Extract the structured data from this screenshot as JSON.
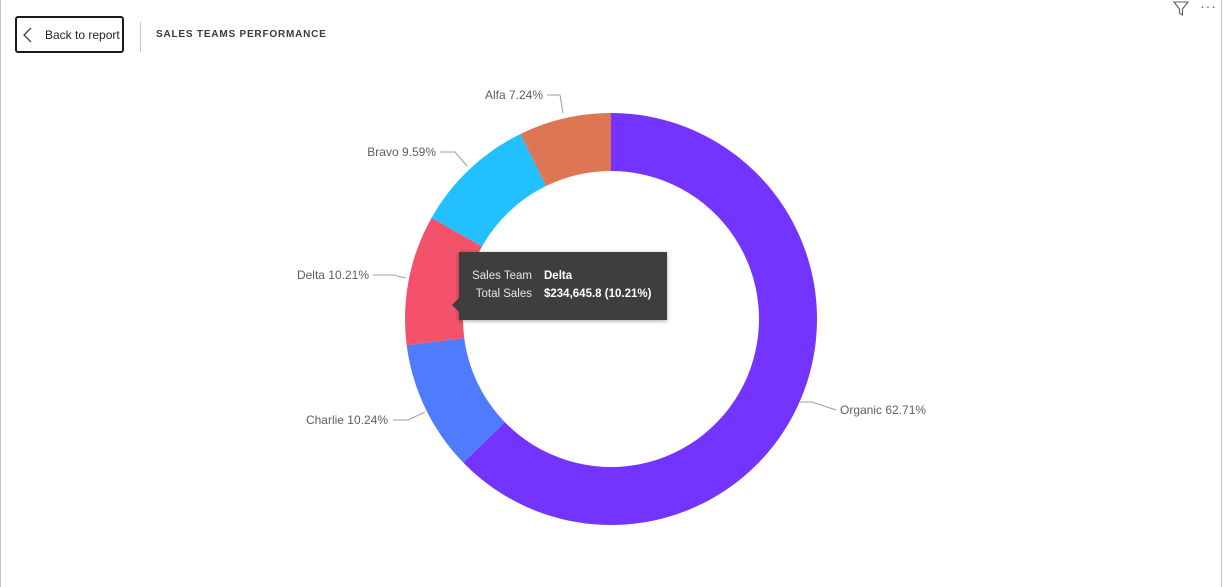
{
  "header": {
    "back_label": "Back to report",
    "title": "SALES TEAMS PERFORMANCE"
  },
  "icons": {
    "back": "chevron-left-icon",
    "filter": "filter-icon",
    "more": "more-options-icon"
  },
  "tooltip": {
    "rows": [
      {
        "key": "Sales Team",
        "value": "Delta"
      },
      {
        "key": "Total Sales",
        "value": "$234,645.8 (10.21%)"
      }
    ]
  },
  "chart_data": {
    "type": "pie",
    "variant": "donut",
    "title": "SALES TEAMS PERFORMANCE",
    "legend": "none",
    "slices": [
      {
        "name": "Organic",
        "percent": 62.71,
        "label": "Organic 62.71%",
        "color": "#7434ff"
      },
      {
        "name": "Charlie",
        "percent": 10.24,
        "label": "Charlie 10.24%",
        "color": "#4f7cff"
      },
      {
        "name": "Delta",
        "percent": 10.21,
        "label": "Delta 10.21%",
        "color": "#f4516b"
      },
      {
        "name": "Bravo",
        "percent": 9.59,
        "label": "Bravo 9.59%",
        "color": "#22c0ff"
      },
      {
        "name": "Alfa",
        "percent": 7.24,
        "label": "Alfa 7.24%",
        "color": "#de7653"
      }
    ]
  }
}
